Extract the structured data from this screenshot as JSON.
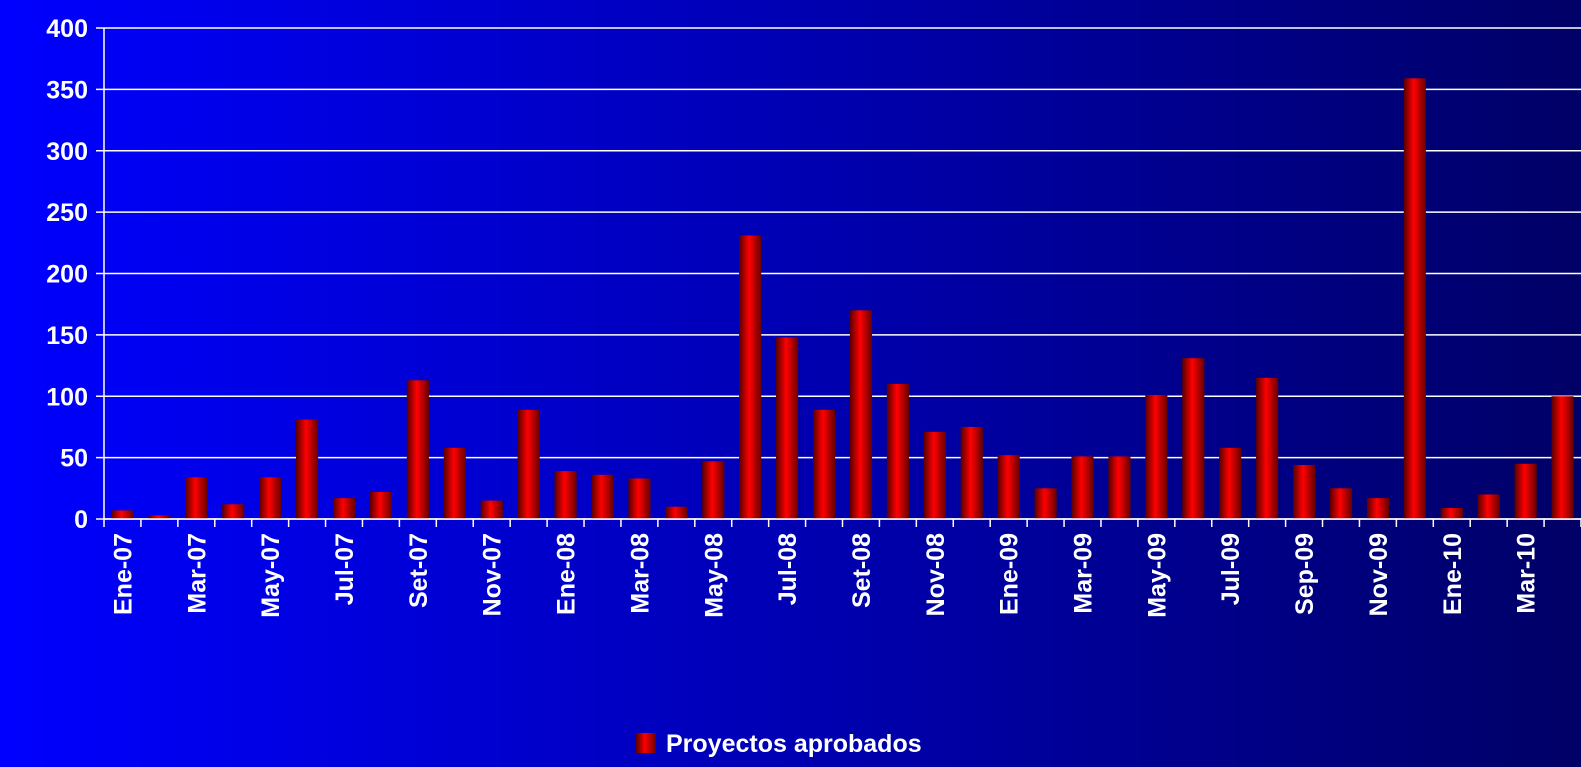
{
  "chart_data": {
    "type": "bar",
    "categories": [
      "Ene-07",
      null,
      "Mar-07",
      null,
      "May-07",
      null,
      "Jul-07",
      null,
      "Set-07",
      null,
      "Nov-07",
      null,
      "Ene-08",
      null,
      "Mar-08",
      null,
      "May-08",
      null,
      "Jul-08",
      null,
      "Set-08",
      null,
      "Nov-08",
      null,
      "Ene-09",
      null,
      "Mar-09",
      null,
      "May-09",
      null,
      "Jul-09",
      null,
      "Sep-09",
      null,
      "Nov-09",
      null,
      "Ene-10",
      null,
      "Mar-10",
      null
    ],
    "series": [
      {
        "name": "Proyectos aprobados",
        "color": "#ff0000",
        "values": [
          7,
          3,
          34,
          12,
          34,
          81,
          17,
          22,
          113,
          58,
          15,
          89,
          39,
          36,
          33,
          10,
          47,
          231,
          148,
          89,
          170,
          110,
          71,
          75,
          52,
          25,
          51,
          51,
          101,
          131,
          58,
          115,
          44,
          25,
          17,
          359,
          9,
          20,
          45,
          100
        ]
      }
    ],
    "ylim": [
      0,
      400
    ],
    "yticks": [
      0,
      50,
      100,
      150,
      200,
      250,
      300,
      350,
      400
    ],
    "grid": true,
    "legend": "bottom"
  }
}
